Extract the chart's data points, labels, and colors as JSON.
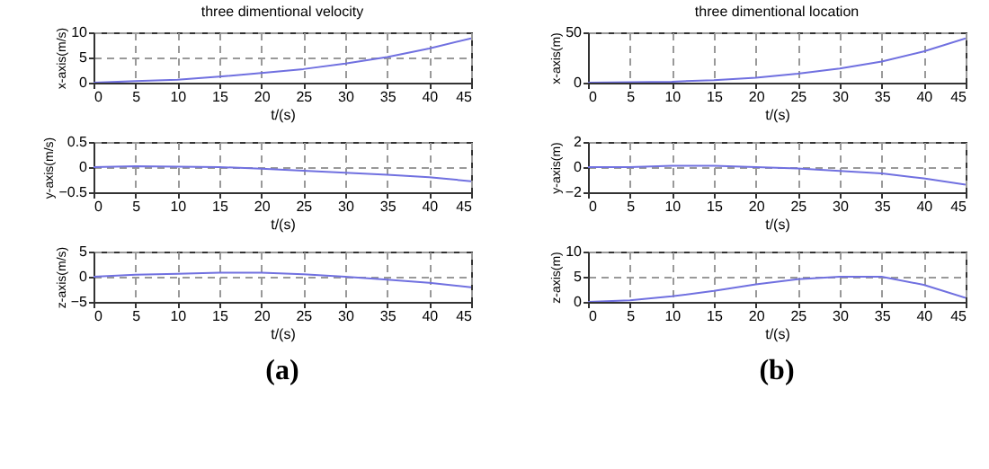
{
  "chart_data": [
    {
      "type": "line",
      "title": "three dimentional velocity",
      "xlabel": "t/(s)",
      "ylabel": "x-axis(m/s)",
      "x": [
        0,
        5,
        10,
        15,
        20,
        25,
        30,
        35,
        40,
        45
      ],
      "series": [
        {
          "color": "#7070e0",
          "values": [
            0,
            0.3,
            0.6,
            1.2,
            1.9,
            2.7,
            3.8,
            5.1,
            6.8,
            8.8
          ]
        }
      ],
      "xlim": [
        0,
        45
      ],
      "xticks": [
        0,
        5,
        10,
        15,
        20,
        25,
        30,
        35,
        40,
        45
      ],
      "ylim": [
        0,
        10
      ],
      "yticks": [
        0,
        5,
        10
      ],
      "grid": true,
      "marker": "none",
      "line_style": "solid"
    },
    {
      "type": "line",
      "title": "three dimentional location",
      "xlabel": "t/(s)",
      "ylabel": "x-axis(m)",
      "x": [
        0,
        5,
        10,
        15,
        20,
        25,
        30,
        35,
        40,
        45
      ],
      "series": [
        {
          "color": "#7070e0",
          "values": [
            0,
            0.5,
            1,
            2.5,
            5,
            9,
            14,
            21,
            31,
            44
          ]
        }
      ],
      "xlim": [
        0,
        45
      ],
      "xticks": [
        0,
        5,
        10,
        15,
        20,
        25,
        30,
        35,
        40,
        45
      ],
      "ylim": [
        0,
        50
      ],
      "yticks": [
        0,
        50
      ],
      "grid": true,
      "marker": "none",
      "line_style": "solid"
    },
    {
      "type": "line",
      "xlabel": "t/(s)",
      "ylabel": "y-axis(m/s)",
      "x": [
        0,
        5,
        10,
        15,
        20,
        25,
        30,
        35,
        40,
        45
      ],
      "series": [
        {
          "color": "#7070e0",
          "values": [
            0,
            0.02,
            0.01,
            0,
            -0.03,
            -0.07,
            -0.11,
            -0.15,
            -0.2,
            -0.28
          ]
        }
      ],
      "xlim": [
        0,
        45
      ],
      "xticks": [
        0,
        5,
        10,
        15,
        20,
        25,
        30,
        35,
        40,
        45
      ],
      "ylim": [
        -0.5,
        0.5
      ],
      "yticks": [
        -0.5,
        0,
        0.5
      ],
      "grid": true,
      "marker": "none",
      "line_style": "solid"
    },
    {
      "type": "line",
      "xlabel": "t/(s)",
      "ylabel": "y-axis(m)",
      "x": [
        0,
        5,
        10,
        15,
        20,
        25,
        30,
        35,
        40,
        45
      ],
      "series": [
        {
          "color": "#7070e0",
          "values": [
            0,
            0,
            0.1,
            0.1,
            0,
            -0.1,
            -0.3,
            -0.5,
            -0.9,
            -1.4
          ]
        }
      ],
      "xlim": [
        0,
        45
      ],
      "xticks": [
        0,
        5,
        10,
        15,
        20,
        25,
        30,
        35,
        40,
        45
      ],
      "ylim": [
        -2,
        2
      ],
      "yticks": [
        -2,
        0,
        2
      ],
      "grid": true,
      "marker": "none",
      "line_style": "solid"
    },
    {
      "type": "line",
      "xlabel": "t/(s)",
      "ylabel": "z-axis(m/s)",
      "annotations": [
        "(a)"
      ],
      "x": [
        0,
        5,
        10,
        15,
        20,
        25,
        30,
        35,
        40,
        45
      ],
      "series": [
        {
          "color": "#7070e0",
          "values": [
            0,
            0.4,
            0.6,
            0.8,
            0.8,
            0.5,
            0,
            -0.6,
            -1.2,
            -2.1
          ]
        }
      ],
      "xlim": [
        0,
        45
      ],
      "xticks": [
        0,
        5,
        10,
        15,
        20,
        25,
        30,
        35,
        40,
        45
      ],
      "ylim": [
        -5,
        5
      ],
      "yticks": [
        -5,
        0,
        5
      ],
      "grid": true,
      "marker": "none",
      "line_style": "solid"
    },
    {
      "type": "line",
      "xlabel": "t/(s)",
      "ylabel": "z-axis(m)",
      "annotations": [
        "(b)"
      ],
      "x": [
        0,
        5,
        10,
        15,
        20,
        25,
        30,
        35,
        40,
        45
      ],
      "series": [
        {
          "color": "#7070e0",
          "values": [
            0,
            0.3,
            1.1,
            2.2,
            3.5,
            4.5,
            5,
            5,
            3.4,
            0.8
          ]
        }
      ],
      "xlim": [
        0,
        45
      ],
      "xticks": [
        0,
        5,
        10,
        15,
        20,
        25,
        30,
        35,
        40,
        45
      ],
      "ylim": [
        0,
        10
      ],
      "yticks": [
        0,
        5,
        10
      ],
      "grid": true,
      "marker": "none",
      "line_style": "solid"
    }
  ]
}
